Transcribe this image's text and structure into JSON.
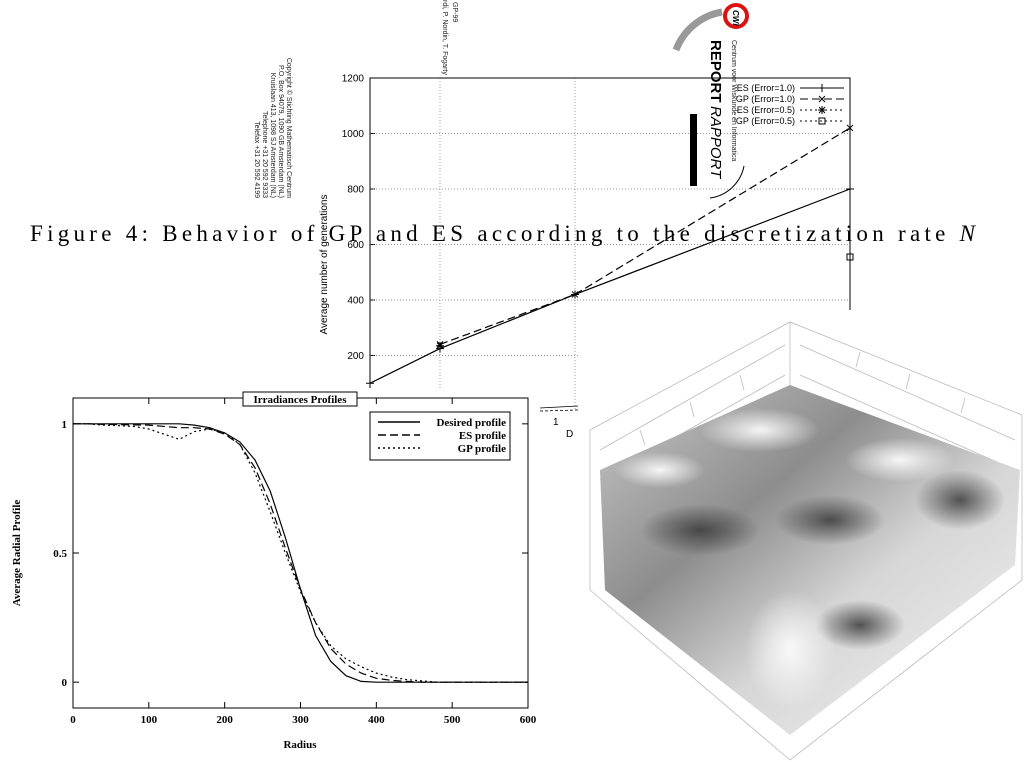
{
  "report_cover": {
    "series_code": "GP-99",
    "authors": "rdi, P. Nordin, T. Fogarty",
    "copyright": [
      "Copyright © Stichting Mathematisch Centrum",
      "P.O. Box 94079, 1090 GB  Amsterdam (NL)",
      "Kruislaan 413, 1098 SJ  Amsterdam (NL)",
      "Telephone +31 20 592 9333",
      "Telefax +31 20 592 4199"
    ],
    "logo": "CWI",
    "institute": "Centrum voor Wiskunde en Informatica",
    "report": "REPORT",
    "rapport": "RAPPORT"
  },
  "caption": {
    "text": "Figure 4: Behavior of GP and ES according to the discretization rate ",
    "variable": "N"
  },
  "fragments": [
    "1",
    "D"
  ],
  "chart_data": [
    {
      "type": "line",
      "y_label": "Average number of generations",
      "categories": [
        null,
        null,
        null,
        null
      ],
      "ylim": [
        0,
        1200
      ],
      "yticks": [
        200,
        400,
        600,
        800,
        1000,
        1200
      ],
      "grid": true,
      "legend": "upper right",
      "series": [
        {
          "name": "ES (Error=1.0)",
          "color": "#000000",
          "style": "solid",
          "marker": "plus",
          "values": [
            100,
            225,
            420,
            800
          ]
        },
        {
          "name": "GP (Error=1.0)",
          "color": "#000000",
          "style": "dashed",
          "marker": "cross",
          "values": [
            null,
            240,
            420,
            1020
          ]
        },
        {
          "name": "ES (Error=0.5)",
          "color": "#000000",
          "style": "dotted",
          "marker": "star",
          "values": [
            null,
            235,
            null,
            null
          ]
        },
        {
          "name": "GP (Error=0.5)",
          "color": "#000000",
          "style": "dotted",
          "marker": "square",
          "values": [
            null,
            null,
            null,
            555
          ]
        }
      ]
    },
    {
      "type": "line",
      "title": "Irradiances Profiles",
      "x_label": "Radius",
      "y_label": "Average Radial Profile",
      "x": [
        0,
        20,
        40,
        60,
        80,
        100,
        120,
        140,
        160,
        180,
        200,
        220,
        240,
        260,
        280,
        300,
        320,
        340,
        360,
        380,
        400,
        420,
        440,
        460,
        480,
        500,
        520,
        540,
        560,
        580,
        600
      ],
      "xlim": [
        0,
        600
      ],
      "xticks": [
        0,
        100,
        200,
        300,
        400,
        500,
        600
      ],
      "ylim": [
        -0.1,
        1.1
      ],
      "yticks": [
        0,
        0.5,
        1
      ],
      "legend": "upper right",
      "series": [
        {
          "name": "Desired profile",
          "color": "#000000",
          "style": "solid",
          "values": [
            1,
            1,
            1,
            1,
            1,
            1,
            1,
            1,
            0.995,
            0.985,
            0.965,
            0.93,
            0.86,
            0.74,
            0.56,
            0.36,
            0.18,
            0.08,
            0.025,
            0.003,
            0,
            0,
            0,
            0,
            0,
            0,
            0,
            0,
            0,
            0,
            0
          ]
        },
        {
          "name": "ES profile",
          "color": "#000000",
          "style": "dashed",
          "values": [
            1,
            1,
            0.998,
            0.997,
            0.996,
            0.995,
            0.99,
            0.985,
            0.985,
            0.98,
            0.96,
            0.92,
            0.83,
            0.69,
            0.52,
            0.36,
            0.23,
            0.13,
            0.07,
            0.035,
            0.015,
            0.007,
            0.003,
            0,
            0,
            0,
            0,
            0,
            0,
            0,
            0
          ]
        },
        {
          "name": "GP profile",
          "color": "#000000",
          "style": "dotted",
          "values": [
            1,
            1,
            0.995,
            0.993,
            0.99,
            0.98,
            0.96,
            0.94,
            0.97,
            0.98,
            0.965,
            0.92,
            0.81,
            0.66,
            0.5,
            0.35,
            0.23,
            0.14,
            0.09,
            0.06,
            0.035,
            0.02,
            0.01,
            0.005,
            0,
            0,
            0,
            0,
            0,
            0,
            0
          ]
        }
      ]
    }
  ]
}
